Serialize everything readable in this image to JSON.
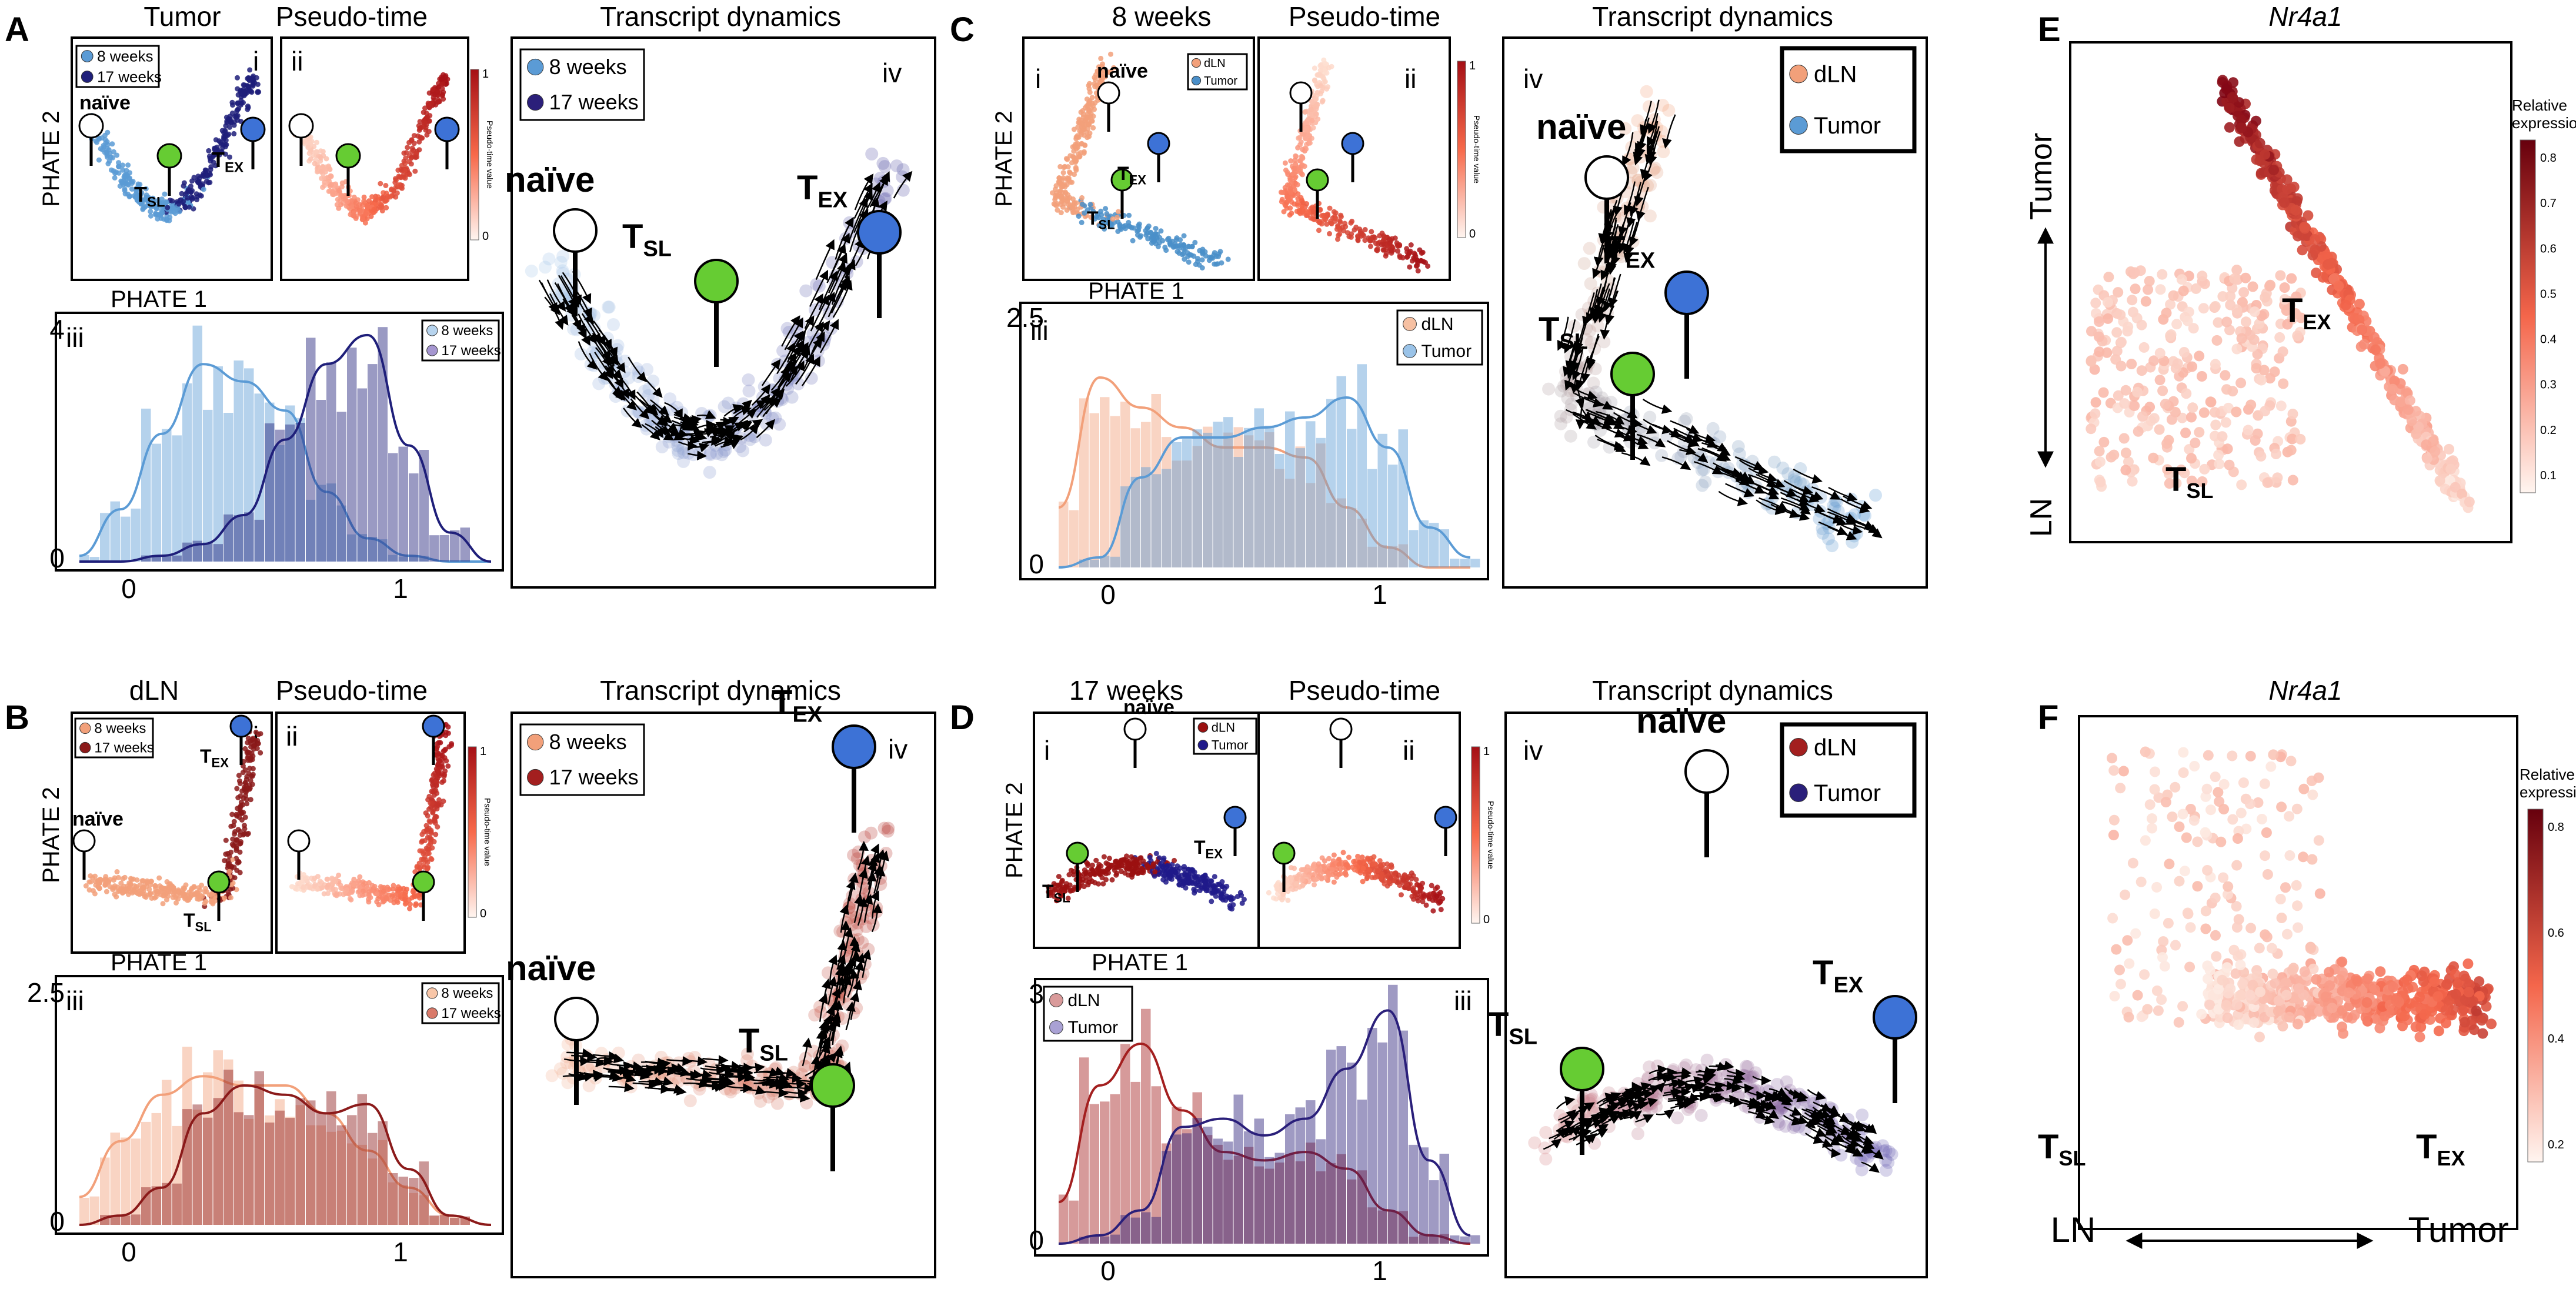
{
  "panels": {
    "A": {
      "label": "A",
      "title_i": "Tumor",
      "title_ii": "Pseudo-time",
      "title_iv": "Transcript dynamics",
      "roman_i": "i",
      "roman_ii": "ii",
      "roman_iii": "iii",
      "roman_iv": "iv",
      "y_axis": "PHATE 2",
      "x_axis": "PHATE 1",
      "legend_i": [
        "8 weeks",
        "17 weeks"
      ],
      "legend_iii": [
        "8 weeks",
        "17 weeks"
      ],
      "legend_iv": [
        "8 weeks",
        "17 weeks"
      ],
      "colorbar_label": "Pseudo-time value",
      "cb_top": "1",
      "cb_bottom": "0",
      "hist_ticks_y": [
        "4",
        "0"
      ],
      "hist_ticks_x": [
        "0",
        "1"
      ],
      "naive": "naïve",
      "tsl": "T",
      "tsl_sub": "SL",
      "tex": "T",
      "tex_sub": "EX",
      "colors": [
        "#5b9bd5",
        "#1f1f7a"
      ]
    },
    "B": {
      "label": "B",
      "title_i": "dLN",
      "title_ii": "Pseudo-time",
      "title_iv": "Transcript dynamics",
      "roman_i": "i",
      "roman_ii": "ii",
      "roman_iii": "iii",
      "roman_iv": "iv",
      "y_axis": "PHATE 2",
      "x_axis": "PHATE 1",
      "legend_i": [
        "8 weeks",
        "17 weeks"
      ],
      "legend_iii": [
        "8 weeks",
        "17 weeks"
      ],
      "legend_iv": [
        "8 weeks",
        "17 weeks"
      ],
      "colorbar_label": "Pseudo-time value",
      "cb_top": "1",
      "cb_bottom": "0",
      "hist_ticks_y": [
        "2.5",
        "0"
      ],
      "hist_ticks_x": [
        "0",
        "1"
      ],
      "naive": "naïve",
      "tsl": "T",
      "tsl_sub": "SL",
      "tex": "T",
      "tex_sub": "EX",
      "colors": [
        "#f2a07a",
        "#8b1a1a"
      ]
    },
    "C": {
      "label": "C",
      "title_i": "8 weeks",
      "title_ii": "Pseudo-time",
      "title_iv": "Transcript dynamics",
      "roman_i": "i",
      "roman_ii": "ii",
      "roman_iii": "iii",
      "roman_iv": "iv",
      "y_axis": "PHATE 2",
      "x_axis": "PHATE 1",
      "legend_i": [
        "dLN",
        "Tumor"
      ],
      "legend_iii": [
        "dLN",
        "Tumor"
      ],
      "legend_iv": [
        "dLN",
        "Tumor"
      ],
      "colorbar_label": "Pseudo-time value",
      "cb_top": "1",
      "cb_bottom": "0",
      "hist_ticks_y": [
        "2.5",
        "0"
      ],
      "hist_ticks_x": [
        "0",
        "1"
      ],
      "naive": "naïve",
      "tsl": "T",
      "tsl_sub": "SL",
      "tex": "T",
      "tex_sub": "EX",
      "colors": [
        "#f2a07a",
        "#5b9bd5"
      ]
    },
    "D": {
      "label": "D",
      "title_i": "17 weeks",
      "title_ii": "Pseudo-time",
      "title_iv": "Transcript dynamics",
      "roman_i": "i",
      "roman_ii": "ii",
      "roman_iii": "iii",
      "roman_iv": "iv",
      "y_axis": "PHATE 2",
      "x_axis": "PHATE 1",
      "legend_i": [
        "dLN",
        "Tumor"
      ],
      "legend_iii": [
        "dLN",
        "Tumor"
      ],
      "legend_iv": [
        "dLN",
        "Tumor"
      ],
      "colorbar_label": "Pseudo-time value",
      "cb_top": "1",
      "cb_bottom": "0",
      "hist_ticks_y": [
        "3",
        "0"
      ],
      "hist_ticks_x": [
        "0",
        "1"
      ],
      "naive": "naïve",
      "tsl": "T",
      "tsl_sub": "SL",
      "tex": "T",
      "tex_sub": "EX",
      "colors": [
        "#a31f1f",
        "#2a1f7a"
      ]
    },
    "E": {
      "label": "E",
      "gene": "Nr4a1",
      "axis_top": "Tumor",
      "axis_bottom": "LN",
      "colorbar_title": "Relative expression",
      "colorbar_ticks": [
        "0.8",
        "0.7",
        "0.6",
        "0.5",
        "0.4",
        "0.3",
        "0.2",
        "0.1"
      ],
      "tex": "T",
      "tex_sub": "EX",
      "tsl": "T",
      "tsl_sub": "SL"
    },
    "F": {
      "label": "F",
      "gene": "Nr4a1",
      "axis_left": "LN",
      "axis_right": "Tumor",
      "colorbar_title": "Relative expression",
      "colorbar_ticks": [
        "0.8",
        "0.6",
        "0.4",
        "0.2"
      ],
      "tex": "T",
      "tex_sub": "EX",
      "tsl": "T",
      "tsl_sub": "SL"
    }
  },
  "chart_data": [
    {
      "type": "bar",
      "panel": "A iii",
      "categories": [
        "0",
        "0.1",
        "0.2",
        "0.3",
        "0.4",
        "0.5",
        "0.6",
        "0.7",
        "0.8",
        "0.9",
        "1"
      ],
      "series": [
        {
          "name": "8 weeks",
          "values": [
            0.1,
            0.9,
            2.2,
            3.4,
            3.1,
            2.6,
            1.2,
            0.4,
            0.1,
            0.0,
            0.0
          ]
        },
        {
          "name": "17 weeks",
          "values": [
            0.0,
            0.0,
            0.1,
            0.3,
            0.8,
            2.1,
            3.4,
            3.9,
            2.0,
            0.5,
            0.0
          ]
        }
      ],
      "ylim": [
        0,
        4
      ],
      "xlim": [
        0,
        1
      ]
    },
    {
      "type": "bar",
      "panel": "B iii",
      "categories": [
        "0",
        "0.1",
        "0.2",
        "0.3",
        "0.4",
        "0.5",
        "0.6",
        "0.7",
        "0.8",
        "0.9",
        "1"
      ],
      "series": [
        {
          "name": "8 weeks",
          "values": [
            0.3,
            0.9,
            1.4,
            1.6,
            1.5,
            1.5,
            1.2,
            0.8,
            0.4,
            0.1,
            0.0
          ]
        },
        {
          "name": "17 weeks",
          "values": [
            0.0,
            0.1,
            0.4,
            1.2,
            1.5,
            1.4,
            1.2,
            1.3,
            0.6,
            0.1,
            0.0
          ]
        }
      ],
      "ylim": [
        0,
        2.5
      ],
      "xlim": [
        0,
        1
      ]
    },
    {
      "type": "bar",
      "panel": "C iii",
      "categories": [
        "0",
        "0.1",
        "0.2",
        "0.3",
        "0.4",
        "0.5",
        "0.6",
        "0.7",
        "0.8",
        "0.9",
        "1"
      ],
      "series": [
        {
          "name": "dLN",
          "values": [
            0.6,
            1.9,
            1.6,
            1.4,
            1.2,
            1.2,
            1.1,
            0.6,
            0.2,
            0.0,
            0.0
          ]
        },
        {
          "name": "Tumor",
          "values": [
            0.0,
            0.1,
            0.9,
            1.3,
            1.3,
            1.4,
            1.5,
            1.7,
            1.2,
            0.4,
            0.1
          ]
        }
      ],
      "ylim": [
        0,
        2.5
      ],
      "xlim": [
        0,
        1
      ]
    },
    {
      "type": "bar",
      "panel": "D iii",
      "categories": [
        "0",
        "0.1",
        "0.2",
        "0.3",
        "0.4",
        "0.5",
        "0.6",
        "0.7",
        "0.8",
        "0.9",
        "1"
      ],
      "series": [
        {
          "name": "dLN",
          "values": [
            0.5,
            1.9,
            2.4,
            1.6,
            1.1,
            1.0,
            1.1,
            0.9,
            0.4,
            0.1,
            0.0
          ]
        },
        {
          "name": "Tumor",
          "values": [
            0.0,
            0.1,
            0.4,
            1.4,
            1.5,
            1.3,
            1.5,
            2.1,
            2.8,
            1.0,
            0.1
          ]
        }
      ],
      "ylim": [
        0,
        3
      ],
      "xlim": [
        0,
        1
      ]
    }
  ]
}
